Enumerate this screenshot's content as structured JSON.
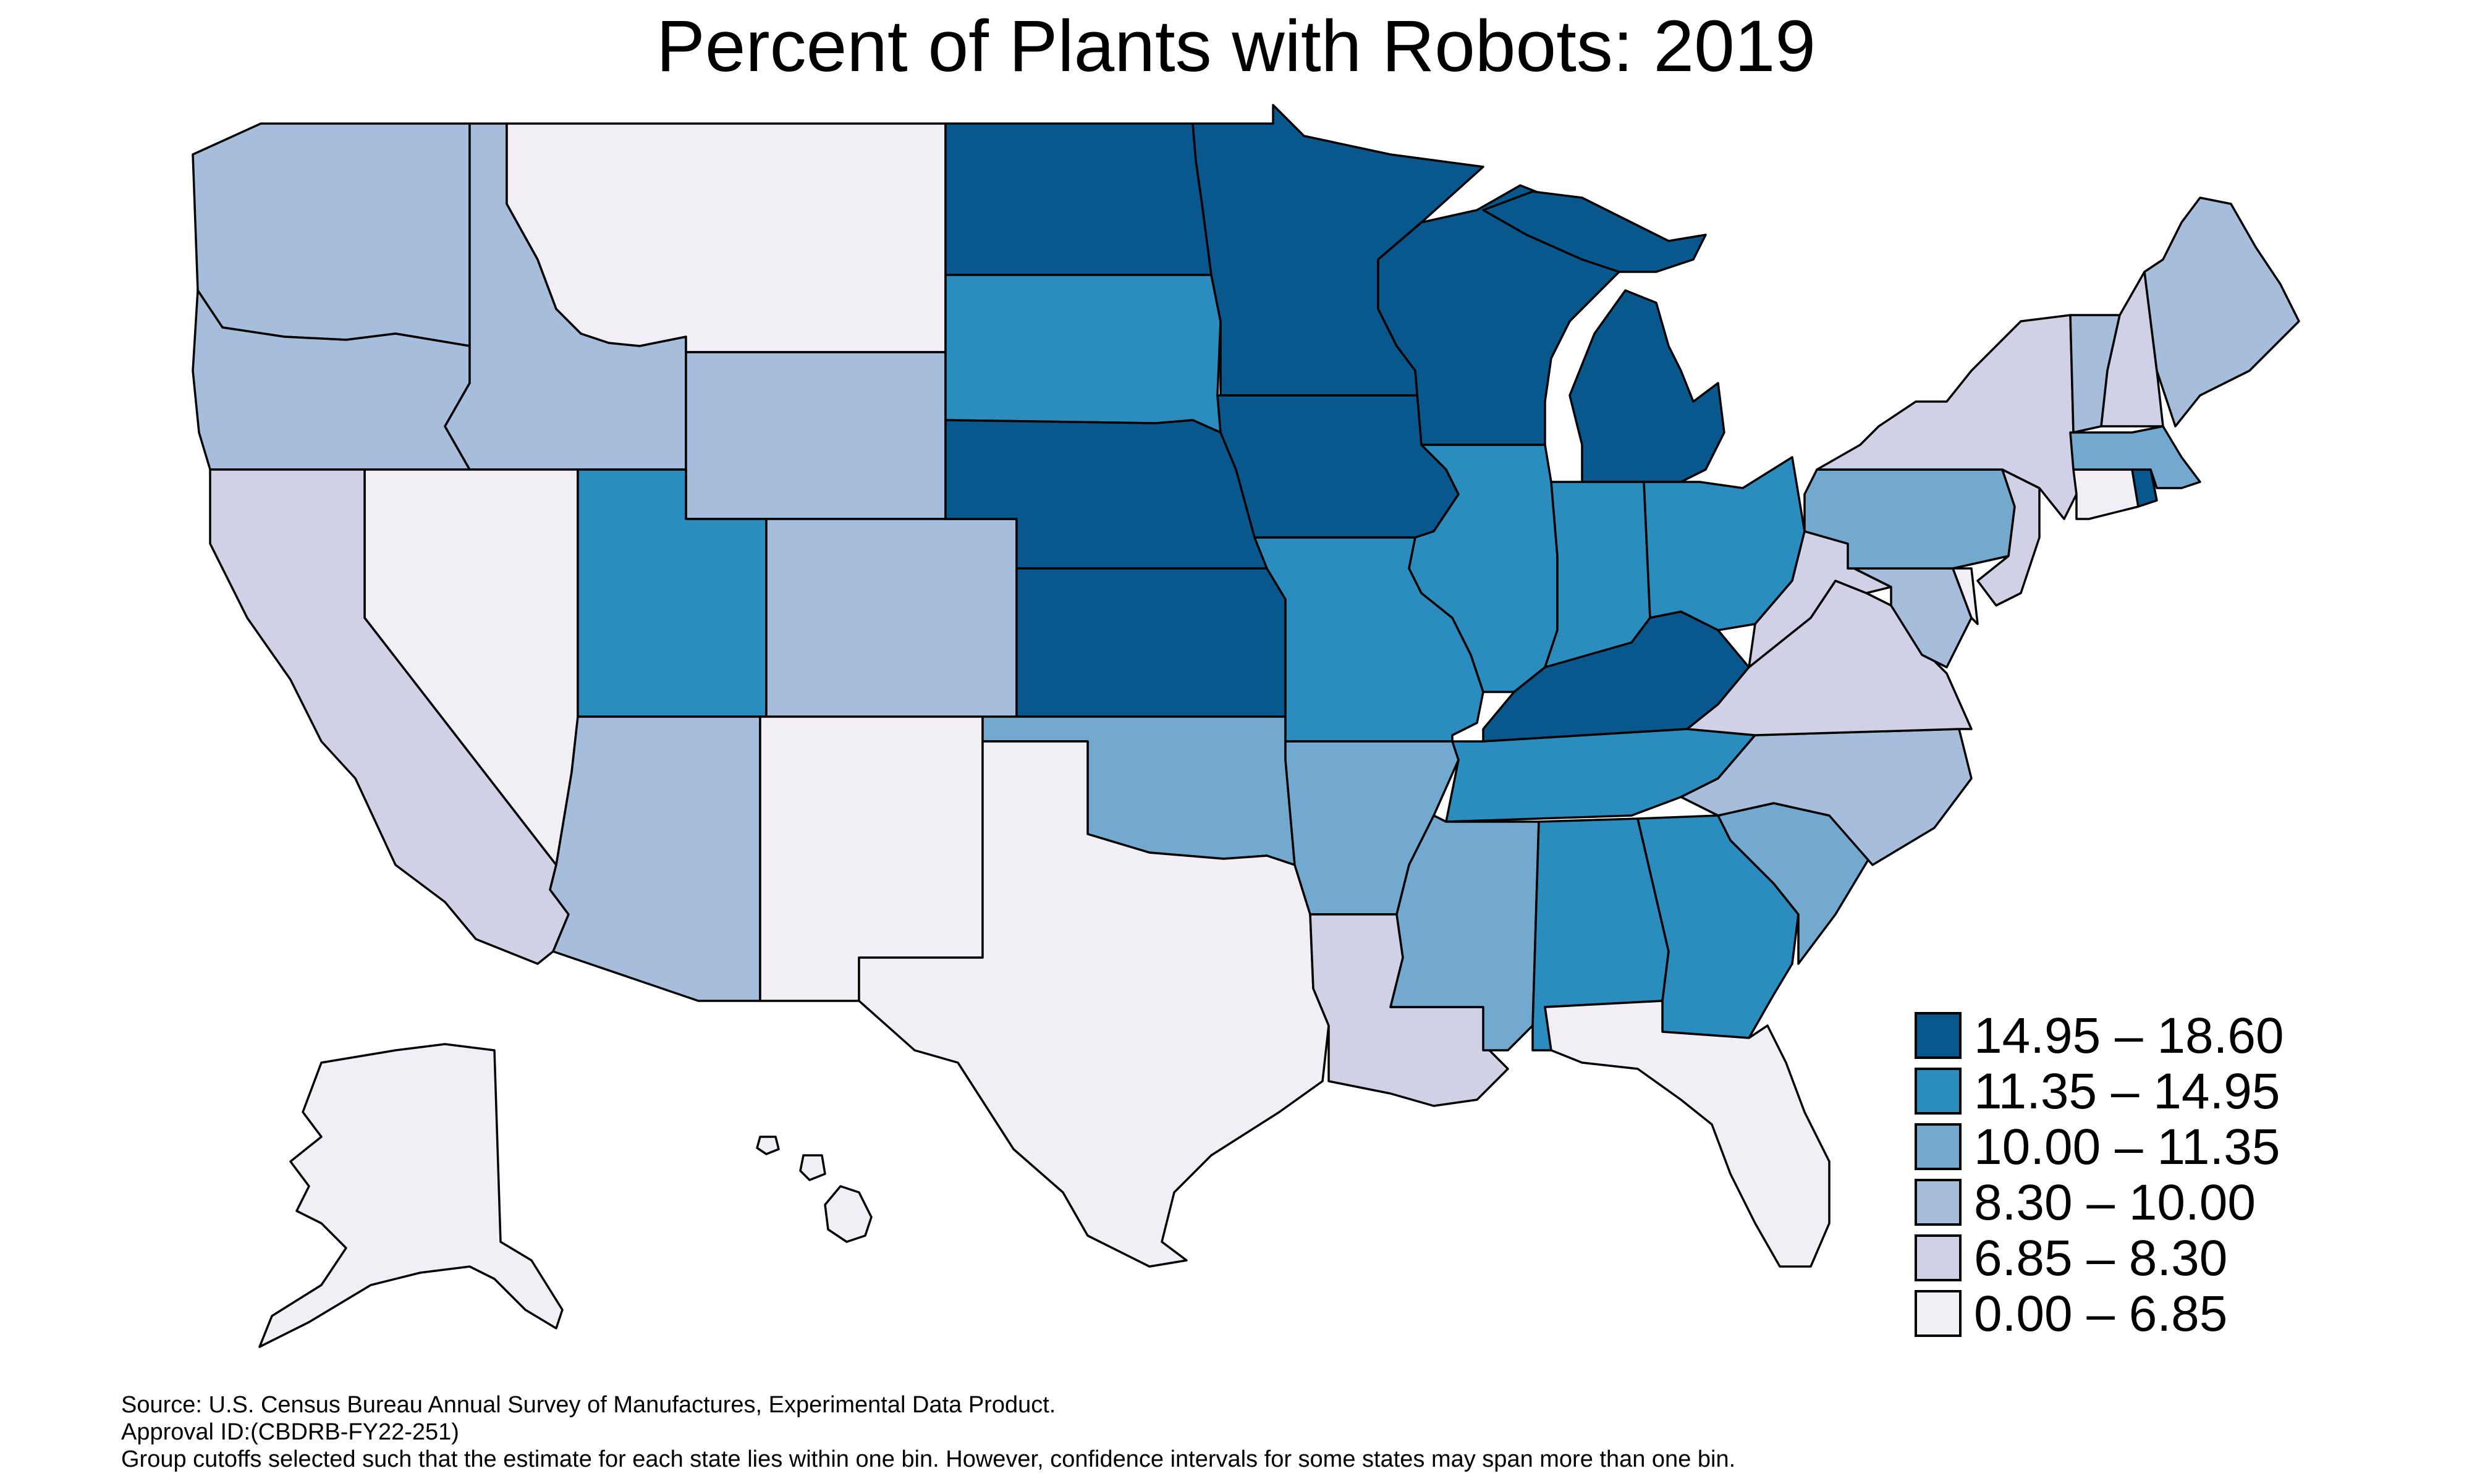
{
  "title": "Percent of Plants with Robots: 2019",
  "bins": [
    {
      "label": "14.95 – 18.60",
      "color": "#08588e"
    },
    {
      "label": "11.35 – 14.95",
      "color": "#2b8cbe"
    },
    {
      "label": "10.00 – 11.35",
      "color": "#74a9cf"
    },
    {
      "label": "8.30 – 10.00",
      "color": "#a6bddb"
    },
    {
      "label": "6.85 – 8.30",
      "color": "#d0d1e6"
    },
    {
      "label": "0.00 – 6.85",
      "color": "#f1eef6"
    }
  ],
  "states": [
    {
      "id": "WA",
      "bin": 3
    },
    {
      "id": "OR",
      "bin": 3
    },
    {
      "id": "CA",
      "bin": 4
    },
    {
      "id": "ID",
      "bin": 3
    },
    {
      "id": "NV",
      "bin": 5
    },
    {
      "id": "MT",
      "bin": 5
    },
    {
      "id": "WY",
      "bin": 3
    },
    {
      "id": "UT",
      "bin": 1
    },
    {
      "id": "AZ",
      "bin": 3
    },
    {
      "id": "CO",
      "bin": 3
    },
    {
      "id": "NM",
      "bin": 5
    },
    {
      "id": "ND",
      "bin": 0
    },
    {
      "id": "SD",
      "bin": 1
    },
    {
      "id": "NE",
      "bin": 0
    },
    {
      "id": "KS",
      "bin": 0
    },
    {
      "id": "OK",
      "bin": 2
    },
    {
      "id": "TX",
      "bin": 5
    },
    {
      "id": "MN",
      "bin": 0
    },
    {
      "id": "IA",
      "bin": 0
    },
    {
      "id": "MO",
      "bin": 1
    },
    {
      "id": "AR",
      "bin": 2
    },
    {
      "id": "LA",
      "bin": 4
    },
    {
      "id": "WI",
      "bin": 0
    },
    {
      "id": "MI",
      "bin": 0
    },
    {
      "id": "IL",
      "bin": 1
    },
    {
      "id": "IN",
      "bin": 1
    },
    {
      "id": "OH",
      "bin": 1
    },
    {
      "id": "KY",
      "bin": 0
    },
    {
      "id": "TN",
      "bin": 1
    },
    {
      "id": "MS",
      "bin": 2
    },
    {
      "id": "AL",
      "bin": 1
    },
    {
      "id": "GA",
      "bin": 1
    },
    {
      "id": "FL",
      "bin": 5
    },
    {
      "id": "SC",
      "bin": 2
    },
    {
      "id": "NC",
      "bin": 3
    },
    {
      "id": "VA",
      "bin": 4
    },
    {
      "id": "WV",
      "bin": 4
    },
    {
      "id": "MD",
      "bin": 3
    },
    {
      "id": "DE",
      "bin": 5
    },
    {
      "id": "PA",
      "bin": 2
    },
    {
      "id": "NJ",
      "bin": 4
    },
    {
      "id": "NY",
      "bin": 4
    },
    {
      "id": "CT",
      "bin": 5
    },
    {
      "id": "RI",
      "bin": 0
    },
    {
      "id": "MA",
      "bin": 2
    },
    {
      "id": "VT",
      "bin": 3
    },
    {
      "id": "NH",
      "bin": 4
    },
    {
      "id": "ME",
      "bin": 3
    },
    {
      "id": "AK",
      "bin": 5
    },
    {
      "id": "HI",
      "bin": 5
    }
  ],
  "notes": {
    "source": "Source: U.S. Census Bureau Annual Survey of Manufactures, Experimental Data Product.",
    "approval": "Approval ID:(CBDRB-FY22-251)",
    "cutoffs": "Group cutoffs selected such that the estimate for each state lies within one bin. However, confidence intervals for some states may span more than one bin."
  }
}
